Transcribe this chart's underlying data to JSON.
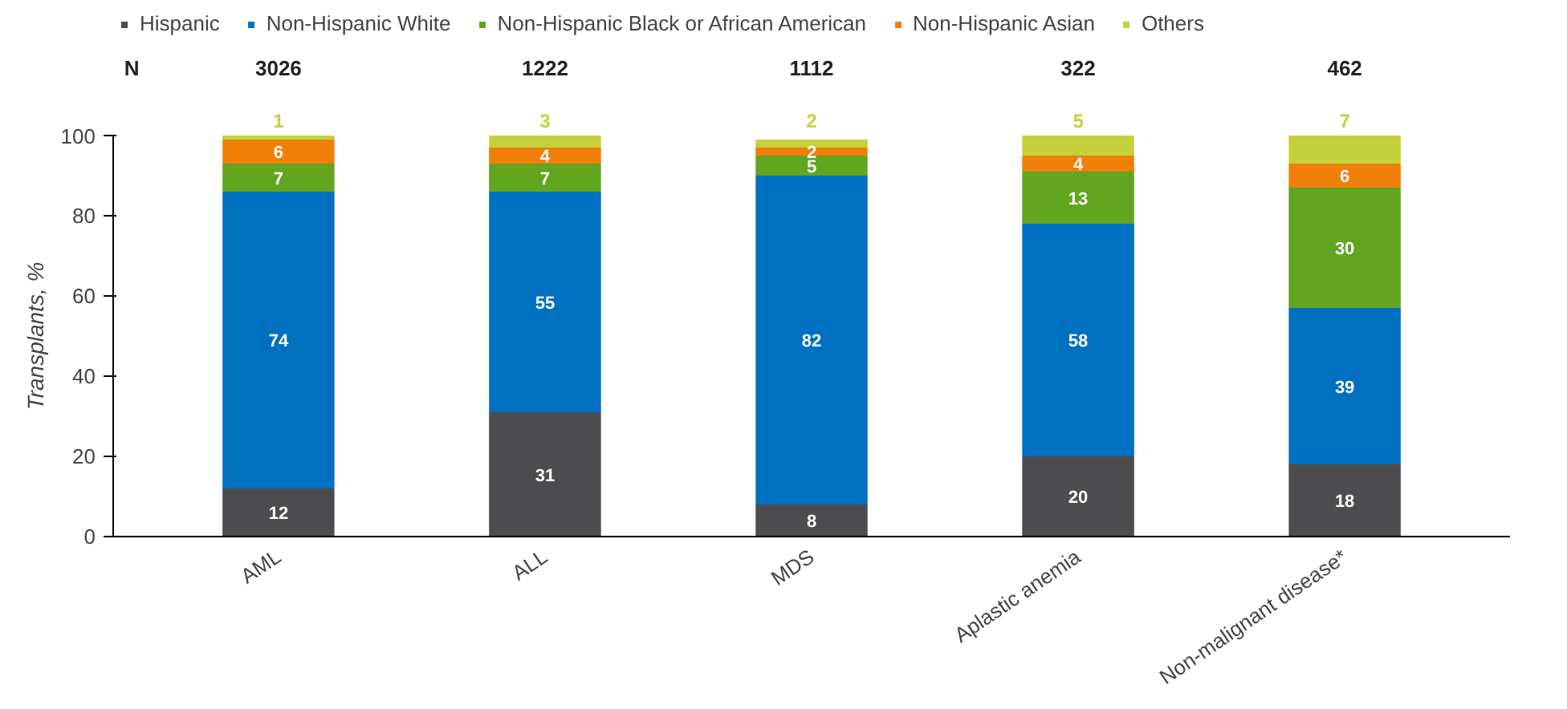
{
  "chart_data": {
    "type": "bar",
    "stacked": true,
    "ylabel": "Transplants, %",
    "categories": [
      "AML",
      "ALL",
      "MDS",
      "Aplastic anemia",
      "Non-malignant disease*"
    ],
    "series": [
      {
        "name": "Hispanic",
        "color": "#4d4d4f",
        "values": [
          12,
          31,
          8,
          20,
          18
        ]
      },
      {
        "name": "Non-Hispanic White",
        "color": "#0070c0",
        "values": [
          74,
          55,
          82,
          58,
          39
        ]
      },
      {
        "name": "Non-Hispanic Black or African American",
        "color": "#62a51e",
        "values": [
          7,
          7,
          5,
          13,
          30
        ]
      },
      {
        "name": "Non-Hispanic Asian",
        "color": "#f07f09",
        "values": [
          6,
          4,
          2,
          4,
          6
        ]
      },
      {
        "name": "Others",
        "color": "#c3d23c",
        "values": [
          1,
          3,
          2,
          5,
          7
        ]
      }
    ],
    "ylim": [
      0,
      100
    ],
    "yticks": [
      0,
      20,
      40,
      60,
      80,
      100
    ],
    "grid": false,
    "legend": "top",
    "data_labels": true,
    "annotations": [
      "N",
      "3026",
      "1222",
      "1112",
      "322",
      "462"
    ]
  }
}
